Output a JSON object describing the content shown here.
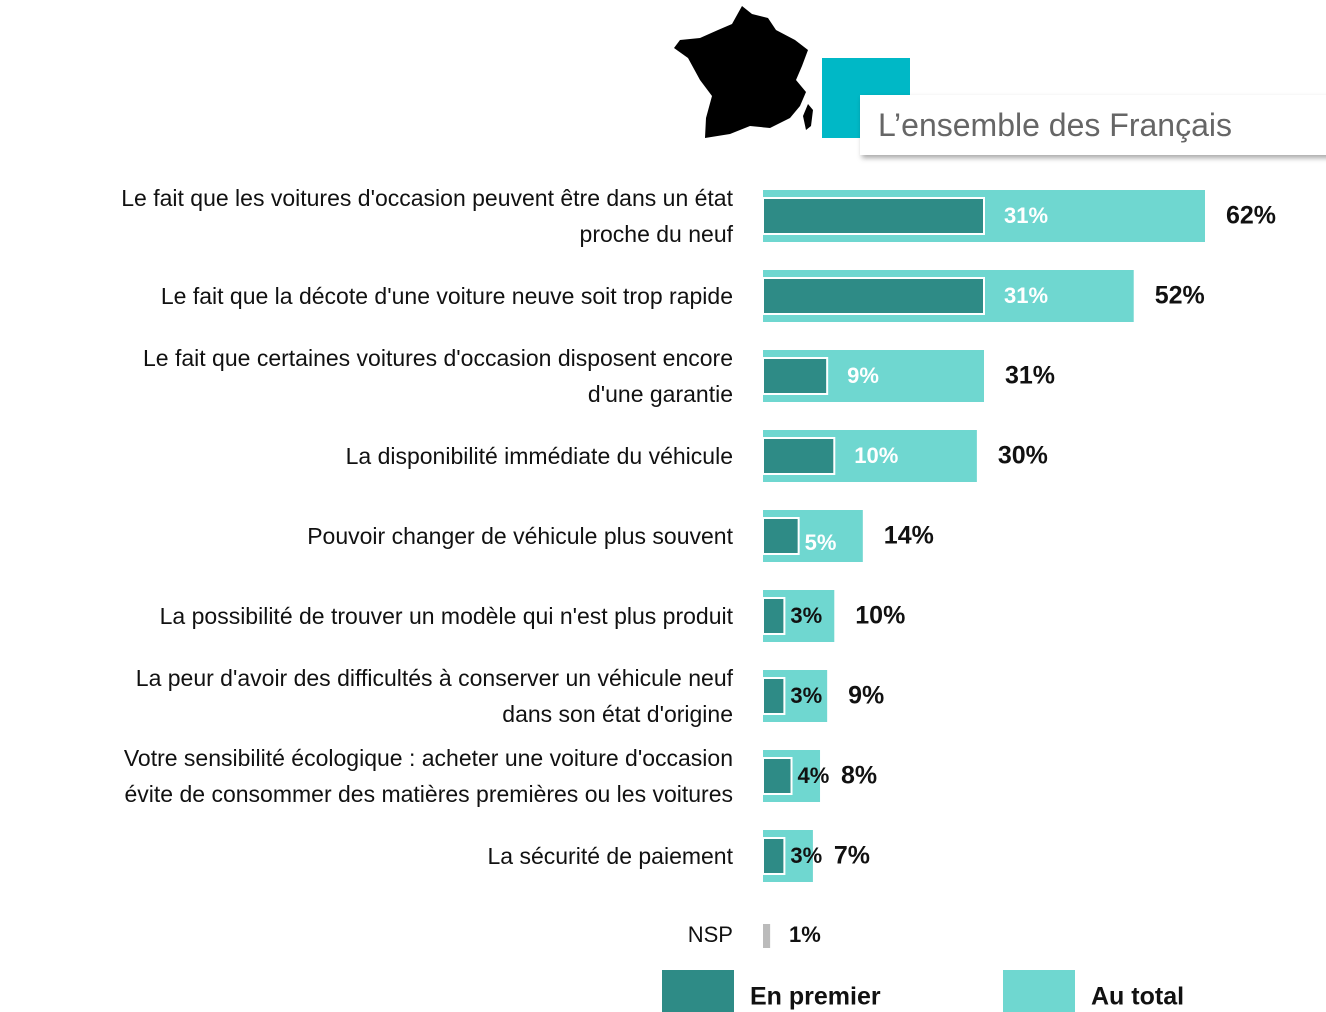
{
  "chart_data": {
    "type": "bar",
    "orientation": "horizontal",
    "overlap": true,
    "title": "L’ensemble des Français",
    "categories": [
      "Le fait que les voitures d'occasion peuvent être dans un état\nproche du neuf",
      "Le fait que la décote d'une voiture neuve soit trop rapide",
      "Le fait que certaines voitures d'occasion disposent encore\nd'une garantie",
      "La disponibilité immédiate du véhicule",
      "Pouvoir changer de véhicule plus souvent",
      "La possibilité de trouver un modèle qui n'est plus produit",
      "La peur d'avoir des difficultés à conserver un véhicule neuf\ndans son état d'origine",
      "Votre sensibilité écologique : acheter une voiture d'occasion\névite de consommer des matières premières ou les voitures",
      "La sécurité de paiement"
    ],
    "series": [
      {
        "name": "En premier",
        "color": "#2e8b86",
        "values": [
          31,
          31,
          9,
          10,
          5,
          3,
          3,
          4,
          3
        ],
        "value_labels": [
          "31%",
          "31%",
          "9%",
          "10%",
          "5%",
          "3%",
          "3%",
          "4%",
          "3%"
        ]
      },
      {
        "name": "Au total",
        "color": "#6fd7d0",
        "values": [
          62,
          52,
          31,
          30,
          14,
          10,
          9,
          8,
          7
        ],
        "value_labels": [
          "62%",
          "52%",
          "31%",
          "30%",
          "14%",
          "10%",
          "9%",
          "8%",
          "7%"
        ]
      }
    ],
    "nsp": {
      "label": "NSP",
      "value": 1,
      "value_label": "1%",
      "color": "#bbbbbb"
    },
    "legend": "bottom"
  }
}
